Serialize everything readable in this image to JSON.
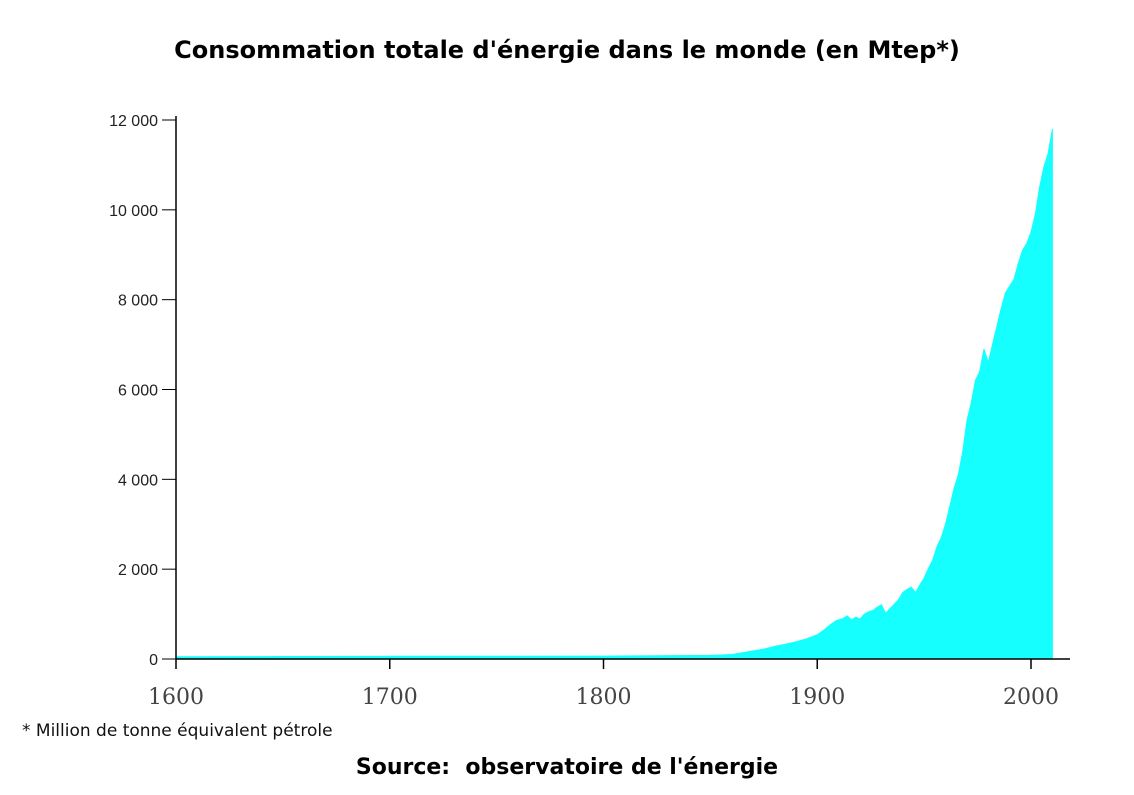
{
  "chart_data": {
    "type": "area",
    "title": "Consommation totale d'énergie dans le monde (en Mtep*)",
    "xlabel": "",
    "ylabel": "",
    "xlim": [
      1600,
      2020
    ],
    "ylim": [
      0,
      12000
    ],
    "x_ticks": [
      1600,
      1700,
      1800,
      1900,
      2000
    ],
    "y_ticks": [
      0,
      2000,
      4000,
      6000,
      8000,
      10000,
      12000
    ],
    "y_tick_labels": [
      "0",
      "2 000",
      "4 000",
      "6 000",
      "8 000",
      "10 000",
      "12 000"
    ],
    "grid": false,
    "color": "#15ffff",
    "x": [
      1600,
      1650,
      1700,
      1750,
      1800,
      1850,
      1855,
      1860,
      1865,
      1870,
      1875,
      1880,
      1885,
      1890,
      1895,
      1900,
      1903,
      1906,
      1909,
      1912,
      1914,
      1916,
      1918,
      1920,
      1922,
      1924,
      1926,
      1928,
      1930,
      1932,
      1934,
      1936,
      1938,
      1940,
      1942,
      1944,
      1946,
      1948,
      1950,
      1952,
      1954,
      1956,
      1958,
      1960,
      1962,
      1964,
      1966,
      1968,
      1970,
      1972,
      1974,
      1976,
      1978,
      1980,
      1982,
      1984,
      1986,
      1988,
      1990,
      1992,
      1994,
      1996,
      1998,
      2000,
      2002,
      2004,
      2006,
      2008,
      2010
    ],
    "values": [
      50,
      55,
      60,
      62,
      65,
      80,
      90,
      100,
      140,
      180,
      220,
      280,
      330,
      380,
      450,
      540,
      640,
      760,
      860,
      900,
      960,
      870,
      930,
      890,
      1000,
      1050,
      1080,
      1150,
      1210,
      1020,
      1120,
      1220,
      1320,
      1480,
      1550,
      1600,
      1480,
      1650,
      1800,
      2020,
      2200,
      2500,
      2700,
      3000,
      3400,
      3800,
      4100,
      4600,
      5300,
      5700,
      6200,
      6400,
      6900,
      6600,
      7000,
      7400,
      7800,
      8150,
      8300,
      8450,
      8800,
      9100,
      9250,
      9500,
      9900,
      10500,
      10950,
      11250,
      11800
    ]
  },
  "footnote": "* Million de tonne équivalent pétrole",
  "source": "Source:  observatoire de l'énergie"
}
